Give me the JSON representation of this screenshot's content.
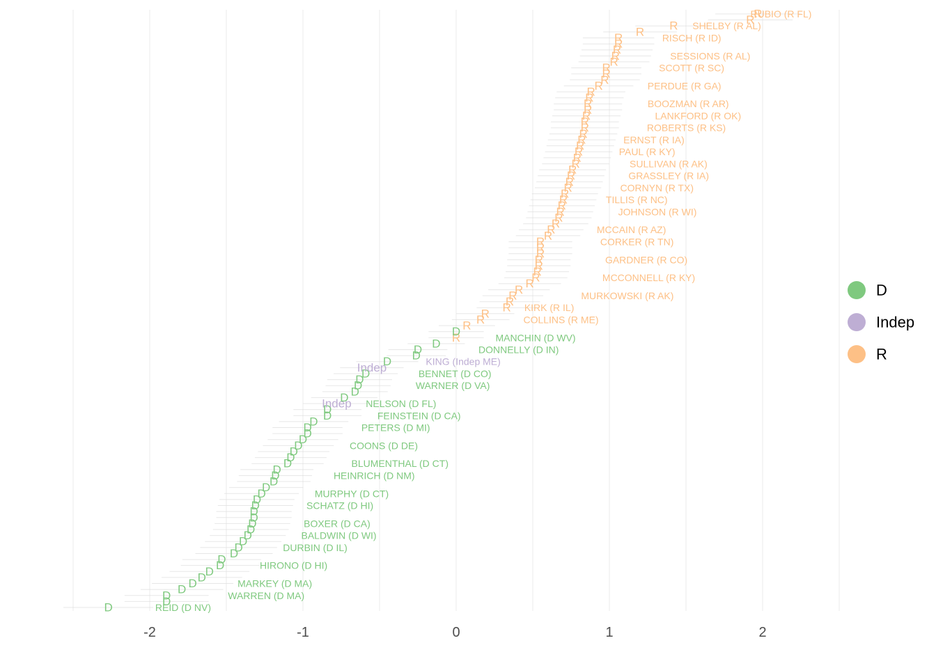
{
  "colors": {
    "D": "#7fc97f",
    "Indep": "#beaed4",
    "R": "#fdc086",
    "grid": "#ebebeb",
    "interval": "#dddddd"
  },
  "chart_data": {
    "type": "scatter",
    "title": "",
    "xlabel": "",
    "ylabel": "",
    "xlim": [
      -2.5,
      2.5
    ],
    "x_ticks": [
      -2,
      -1,
      0,
      1,
      2
    ],
    "x_tick_labels": [
      "-2",
      "-1",
      "0",
      "1",
      "2"
    ],
    "grid": true,
    "legend_position": "right",
    "legend": [
      {
        "key": "D",
        "label": "D"
      },
      {
        "key": "Indep",
        "label": "Indep"
      },
      {
        "key": "R",
        "label": "R"
      }
    ],
    "points": [
      {
        "x": -2.27,
        "party": "D",
        "marker": "D"
      },
      {
        "x": -1.89,
        "party": "D",
        "marker": "D"
      },
      {
        "x": -1.89,
        "party": "D",
        "marker": "D"
      },
      {
        "x": -1.79,
        "party": "D",
        "marker": "D"
      },
      {
        "x": -1.72,
        "party": "D",
        "marker": "D"
      },
      {
        "x": -1.66,
        "party": "D",
        "marker": "D"
      },
      {
        "x": -1.61,
        "party": "D",
        "marker": "D"
      },
      {
        "x": -1.54,
        "party": "D",
        "marker": "D"
      },
      {
        "x": -1.53,
        "party": "D",
        "marker": "D"
      },
      {
        "x": -1.45,
        "party": "D",
        "marker": "D"
      },
      {
        "x": -1.42,
        "party": "D",
        "marker": "D"
      },
      {
        "x": -1.39,
        "party": "D",
        "marker": "D"
      },
      {
        "x": -1.36,
        "party": "D",
        "marker": "D"
      },
      {
        "x": -1.34,
        "party": "D",
        "marker": "D"
      },
      {
        "x": -1.33,
        "party": "D",
        "marker": "D"
      },
      {
        "x": -1.32,
        "party": "D",
        "marker": "D"
      },
      {
        "x": -1.32,
        "party": "D",
        "marker": "D"
      },
      {
        "x": -1.31,
        "party": "D",
        "marker": "D"
      },
      {
        "x": -1.3,
        "party": "D",
        "marker": "D"
      },
      {
        "x": -1.27,
        "party": "D",
        "marker": "D"
      },
      {
        "x": -1.24,
        "party": "D",
        "marker": "D"
      },
      {
        "x": -1.19,
        "party": "D",
        "marker": "D"
      },
      {
        "x": -1.18,
        "party": "D",
        "marker": "D"
      },
      {
        "x": -1.17,
        "party": "D",
        "marker": "D"
      },
      {
        "x": -1.1,
        "party": "D",
        "marker": "D"
      },
      {
        "x": -1.08,
        "party": "D",
        "marker": "D"
      },
      {
        "x": -1.06,
        "party": "D",
        "marker": "D"
      },
      {
        "x": -1.03,
        "party": "D",
        "marker": "D"
      },
      {
        "x": -1.0,
        "party": "D",
        "marker": "D"
      },
      {
        "x": -0.97,
        "party": "D",
        "marker": "D"
      },
      {
        "x": -0.97,
        "party": "D",
        "marker": "D"
      },
      {
        "x": -0.93,
        "party": "D",
        "marker": "D"
      },
      {
        "x": -0.84,
        "party": "D",
        "marker": "D"
      },
      {
        "x": -0.84,
        "party": "D",
        "marker": "D"
      },
      {
        "x": -0.78,
        "party": "Indep",
        "marker": "Indep"
      },
      {
        "x": -0.73,
        "party": "D",
        "marker": "D"
      },
      {
        "x": -0.66,
        "party": "D",
        "marker": "D"
      },
      {
        "x": -0.64,
        "party": "D",
        "marker": "D"
      },
      {
        "x": -0.63,
        "party": "D",
        "marker": "D"
      },
      {
        "x": -0.59,
        "party": "D",
        "marker": "D"
      },
      {
        "x": -0.55,
        "party": "Indep",
        "marker": "Indep"
      },
      {
        "x": -0.45,
        "party": "D",
        "marker": "D"
      },
      {
        "x": -0.26,
        "party": "D",
        "marker": "D"
      },
      {
        "x": -0.25,
        "party": "D",
        "marker": "D"
      },
      {
        "x": -0.13,
        "party": "D",
        "marker": "D"
      },
      {
        "x": 0.0,
        "party": "R",
        "marker": "R"
      },
      {
        "x": 0.0,
        "party": "D",
        "marker": "D"
      },
      {
        "x": 0.07,
        "party": "R",
        "marker": "R"
      },
      {
        "x": 0.16,
        "party": "R",
        "marker": "R"
      },
      {
        "x": 0.19,
        "party": "R",
        "marker": "R"
      },
      {
        "x": 0.33,
        "party": "R",
        "marker": "R"
      },
      {
        "x": 0.35,
        "party": "R",
        "marker": "R"
      },
      {
        "x": 0.37,
        "party": "R",
        "marker": "R"
      },
      {
        "x": 0.41,
        "party": "R",
        "marker": "R"
      },
      {
        "x": 0.48,
        "party": "R",
        "marker": "R"
      },
      {
        "x": 0.52,
        "party": "R",
        "marker": "R"
      },
      {
        "x": 0.53,
        "party": "R",
        "marker": "R"
      },
      {
        "x": 0.54,
        "party": "R",
        "marker": "R"
      },
      {
        "x": 0.54,
        "party": "R",
        "marker": "R"
      },
      {
        "x": 0.55,
        "party": "R",
        "marker": "R"
      },
      {
        "x": 0.55,
        "party": "R",
        "marker": "R"
      },
      {
        "x": 0.55,
        "party": "R",
        "marker": "R"
      },
      {
        "x": 0.6,
        "party": "R",
        "marker": "R"
      },
      {
        "x": 0.62,
        "party": "R",
        "marker": "R"
      },
      {
        "x": 0.65,
        "party": "R",
        "marker": "R"
      },
      {
        "x": 0.67,
        "party": "R",
        "marker": "R"
      },
      {
        "x": 0.68,
        "party": "R",
        "marker": "R"
      },
      {
        "x": 0.69,
        "party": "R",
        "marker": "R"
      },
      {
        "x": 0.7,
        "party": "R",
        "marker": "R"
      },
      {
        "x": 0.71,
        "party": "R",
        "marker": "R"
      },
      {
        "x": 0.73,
        "party": "R",
        "marker": "R"
      },
      {
        "x": 0.74,
        "party": "R",
        "marker": "R"
      },
      {
        "x": 0.75,
        "party": "R",
        "marker": "R"
      },
      {
        "x": 0.76,
        "party": "R",
        "marker": "R"
      },
      {
        "x": 0.78,
        "party": "R",
        "marker": "R"
      },
      {
        "x": 0.79,
        "party": "R",
        "marker": "R"
      },
      {
        "x": 0.8,
        "party": "R",
        "marker": "R"
      },
      {
        "x": 0.81,
        "party": "R",
        "marker": "R"
      },
      {
        "x": 0.82,
        "party": "R",
        "marker": "R"
      },
      {
        "x": 0.83,
        "party": "R",
        "marker": "R"
      },
      {
        "x": 0.84,
        "party": "R",
        "marker": "R"
      },
      {
        "x": 0.84,
        "party": "R",
        "marker": "R"
      },
      {
        "x": 0.85,
        "party": "R",
        "marker": "R"
      },
      {
        "x": 0.86,
        "party": "R",
        "marker": "R"
      },
      {
        "x": 0.86,
        "party": "R",
        "marker": "R"
      },
      {
        "x": 0.87,
        "party": "R",
        "marker": "R"
      },
      {
        "x": 0.88,
        "party": "R",
        "marker": "R"
      },
      {
        "x": 0.93,
        "party": "R",
        "marker": "R"
      },
      {
        "x": 0.97,
        "party": "R",
        "marker": "R"
      },
      {
        "x": 0.98,
        "party": "R",
        "marker": "R"
      },
      {
        "x": 0.98,
        "party": "R",
        "marker": "R"
      },
      {
        "x": 1.03,
        "party": "R",
        "marker": "R"
      },
      {
        "x": 1.04,
        "party": "R",
        "marker": "R"
      },
      {
        "x": 1.05,
        "party": "R",
        "marker": "R"
      },
      {
        "x": 1.06,
        "party": "R",
        "marker": "R"
      },
      {
        "x": 1.06,
        "party": "R",
        "marker": "R"
      },
      {
        "x": 1.2,
        "party": "R",
        "marker": "R"
      },
      {
        "x": 1.42,
        "party": "R",
        "marker": "R"
      },
      {
        "x": 1.92,
        "party": "R",
        "marker": "R"
      },
      {
        "x": 1.97,
        "party": "R",
        "marker": "R"
      }
    ],
    "labels": [
      {
        "text": "RUBIO (R FL)",
        "party": "R",
        "x_right": 2.32,
        "rank": 0
      },
      {
        "text": "SHELBY (R AL)",
        "party": "R",
        "x_right": 1.99,
        "rank": 2
      },
      {
        "text": "RISCH (R ID)",
        "party": "R",
        "x_right": 1.73,
        "rank": 4
      },
      {
        "text": "SESSIONS (R AL)",
        "party": "R",
        "x_right": 1.92,
        "rank": 7
      },
      {
        "text": "SCOTT (R SC)",
        "party": "R",
        "x_right": 1.75,
        "rank": 9
      },
      {
        "text": "PERDUE (R GA)",
        "party": "R",
        "x_right": 1.73,
        "rank": 12
      },
      {
        "text": "BOOZMAN (R AR)",
        "party": "R",
        "x_right": 1.78,
        "rank": 15
      },
      {
        "text": "LANKFORD (R OK)",
        "party": "R",
        "x_right": 1.86,
        "rank": 17
      },
      {
        "text": "ROBERTS (R KS)",
        "party": "R",
        "x_right": 1.76,
        "rank": 19
      },
      {
        "text": "ERNST (R IA)",
        "party": "R",
        "x_right": 1.49,
        "rank": 21
      },
      {
        "text": "PAUL (R KY)",
        "party": "R",
        "x_right": 1.43,
        "rank": 23
      },
      {
        "text": "SULLIVAN (R AK)",
        "party": "R",
        "x_right": 1.64,
        "rank": 25
      },
      {
        "text": "GRASSLEY (R IA)",
        "party": "R",
        "x_right": 1.65,
        "rank": 27
      },
      {
        "text": "CORNYN (R TX)",
        "party": "R",
        "x_right": 1.55,
        "rank": 29
      },
      {
        "text": "TILLIS (R NC)",
        "party": "R",
        "x_right": 1.38,
        "rank": 31
      },
      {
        "text": "JOHNSON (R WI)",
        "party": "R",
        "x_right": 1.57,
        "rank": 33
      },
      {
        "text": "MCCAIN (R AZ)",
        "party": "R",
        "x_right": 1.37,
        "rank": 36
      },
      {
        "text": "CORKER (R TN)",
        "party": "R",
        "x_right": 1.42,
        "rank": 38
      },
      {
        "text": "GARDNER (R CO)",
        "party": "R",
        "x_right": 1.51,
        "rank": 41
      },
      {
        "text": "MCCONNELL (R KY)",
        "party": "R",
        "x_right": 1.56,
        "rank": 44
      },
      {
        "text": "MURKOWSKI (R AK)",
        "party": "R",
        "x_right": 1.42,
        "rank": 47
      },
      {
        "text": "KIRK (R IL)",
        "party": "R",
        "x_right": 0.77,
        "rank": 49
      },
      {
        "text": "COLLINS (R ME)",
        "party": "R",
        "x_right": 0.93,
        "rank": 51
      },
      {
        "text": "MANCHIN (D WV)",
        "party": "D",
        "x_right": 0.78,
        "rank": 54
      },
      {
        "text": "DONNELLY (D IN)",
        "party": "D",
        "x_right": 0.67,
        "rank": 56
      },
      {
        "text": "KING (Indep ME)",
        "party": "Indep",
        "x_right": 0.29,
        "rank": 58
      },
      {
        "text": "BENNET (D CO)",
        "party": "D",
        "x_right": 0.23,
        "rank": 60
      },
      {
        "text": "WARNER (D VA)",
        "party": "D",
        "x_right": 0.22,
        "rank": 62
      },
      {
        "text": "NELSON (D FL)",
        "party": "D",
        "x_right": -0.13,
        "rank": 65
      },
      {
        "text": "FEINSTEIN (D CA)",
        "party": "D",
        "x_right": 0.03,
        "rank": 67
      },
      {
        "text": "PETERS (D MI)",
        "party": "D",
        "x_right": -0.17,
        "rank": 69
      },
      {
        "text": "COONS (D DE)",
        "party": "D",
        "x_right": -0.25,
        "rank": 72
      },
      {
        "text": "BLUMENTHAL (D CT)",
        "party": "D",
        "x_right": -0.05,
        "rank": 75
      },
      {
        "text": "HEINRICH (D NM)",
        "party": "D",
        "x_right": -0.27,
        "rank": 77
      },
      {
        "text": "MURPHY (D CT)",
        "party": "D",
        "x_right": -0.44,
        "rank": 80
      },
      {
        "text": "SCHATZ (D HI)",
        "party": "D",
        "x_right": -0.54,
        "rank": 82
      },
      {
        "text": "BOXER (D CA)",
        "party": "D",
        "x_right": -0.56,
        "rank": 85
      },
      {
        "text": "BALDWIN (D WI)",
        "party": "D",
        "x_right": -0.52,
        "rank": 87
      },
      {
        "text": "DURBIN (D IL)",
        "party": "D",
        "x_right": -0.71,
        "rank": 89
      },
      {
        "text": "HIRONO (D HI)",
        "party": "D",
        "x_right": -0.84,
        "rank": 92
      },
      {
        "text": "MARKEY (D MA)",
        "party": "D",
        "x_right": -0.94,
        "rank": 95
      },
      {
        "text": "WARREN (D MA)",
        "party": "D",
        "x_right": -0.99,
        "rank": 97
      },
      {
        "text": "REID (D NV)",
        "party": "D",
        "x_right": -1.6,
        "rank": 99
      }
    ]
  }
}
